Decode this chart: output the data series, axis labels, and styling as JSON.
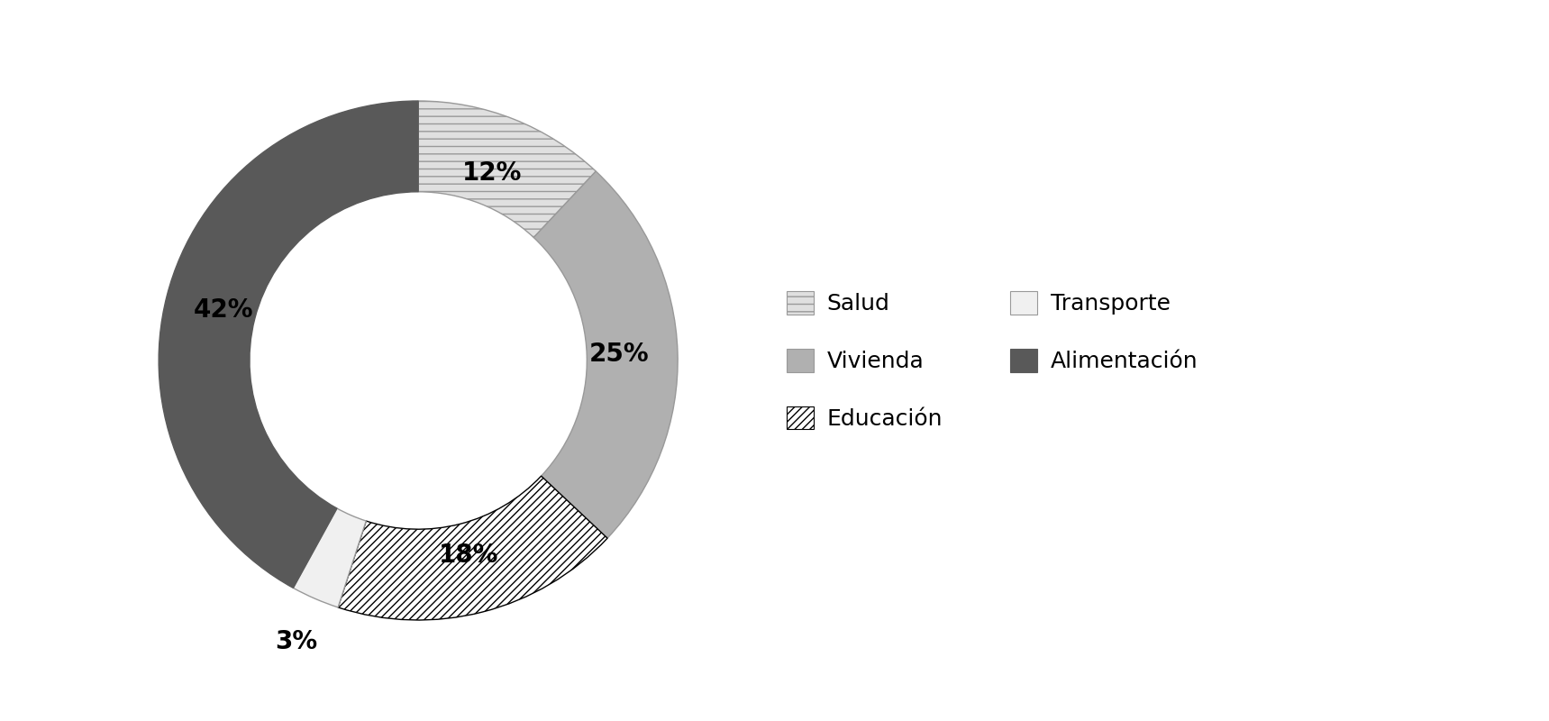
{
  "labels": [
    "Salud",
    "Vivienda",
    "Educación",
    "Transporte",
    "Alimentación"
  ],
  "values": [
    12,
    25,
    18,
    3,
    42
  ],
  "colors": [
    "#e0e0e0",
    "#b0b0b0",
    "#ffffff",
    "#f0f0f0",
    "#595959"
  ],
  "hatch_patterns": [
    "--",
    "",
    "////",
    "",
    ""
  ],
  "edge_colors": [
    "#999999",
    "#999999",
    "#000000",
    "#999999",
    "#595959"
  ],
  "pct_labels": [
    "12%",
    "25%",
    "18%",
    "3%",
    "42%"
  ],
  "legend_order": [
    "Salud",
    "Vivienda",
    "Educación",
    "Transporte",
    "Alimentación"
  ],
  "legend_colors": [
    "#e0e0e0",
    "#b0b0b0",
    "#ffffff",
    "#f0f0f0",
    "#595959"
  ],
  "legend_hatches": [
    "--",
    "",
    "////",
    "",
    ""
  ],
  "legend_edge_colors": [
    "#999999",
    "#999999",
    "#000000",
    "#999999",
    "#595959"
  ],
  "pct_fontsize": 20,
  "legend_fontsize": 18,
  "startangle": 90,
  "donut_width": 0.35
}
